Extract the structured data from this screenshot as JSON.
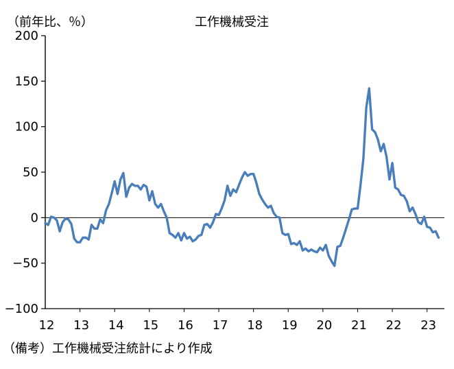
{
  "chart_data": {
    "type": "line",
    "title": "工作機械受注",
    "ylabel": "（前年比、％）",
    "ylim": [
      -100,
      200
    ],
    "yticks": [
      200,
      150,
      100,
      50,
      0,
      -50,
      -100
    ],
    "ytick_labels": [
      "200",
      "150",
      "100",
      "50",
      "0",
      "−50",
      "−100"
    ],
    "xlim": [
      2012.0,
      2023.5
    ],
    "xticks": [
      2012,
      2013,
      2014,
      2015,
      2016,
      2017,
      2018,
      2019,
      2020,
      2021,
      2022,
      2023
    ],
    "xtick_labels": [
      "12",
      "13",
      "14",
      "15",
      "16",
      "17",
      "18",
      "19",
      "20",
      "21",
      "22",
      "23"
    ],
    "grid": false,
    "series": [
      {
        "color": "#4a7ebb",
        "x": [
          2012.0,
          2012.083,
          2012.167,
          2012.25,
          2012.333,
          2012.417,
          2012.5,
          2012.583,
          2012.667,
          2012.75,
          2012.833,
          2012.917,
          2013.0,
          2013.083,
          2013.167,
          2013.25,
          2013.333,
          2013.417,
          2013.5,
          2013.583,
          2013.667,
          2013.75,
          2013.833,
          2013.917,
          2014.0,
          2014.083,
          2014.167,
          2014.25,
          2014.333,
          2014.417,
          2014.5,
          2014.583,
          2014.667,
          2014.75,
          2014.833,
          2014.917,
          2015.0,
          2015.083,
          2015.167,
          2015.25,
          2015.333,
          2015.417,
          2015.5,
          2015.583,
          2015.667,
          2015.75,
          2015.833,
          2015.917,
          2016.0,
          2016.083,
          2016.167,
          2016.25,
          2016.333,
          2016.417,
          2016.5,
          2016.583,
          2016.667,
          2016.75,
          2016.833,
          2016.917,
          2017.0,
          2017.083,
          2017.167,
          2017.25,
          2017.333,
          2017.417,
          2017.5,
          2017.583,
          2017.667,
          2017.75,
          2017.833,
          2017.917,
          2018.0,
          2018.083,
          2018.167,
          2018.25,
          2018.333,
          2018.417,
          2018.5,
          2018.583,
          2018.667,
          2018.75,
          2018.833,
          2018.917,
          2019.0,
          2019.083,
          2019.167,
          2019.25,
          2019.333,
          2019.417,
          2019.5,
          2019.583,
          2019.667,
          2019.75,
          2019.833,
          2019.917,
          2020.0,
          2020.083,
          2020.167,
          2020.25,
          2020.333,
          2020.417,
          2020.5,
          2020.583,
          2020.667,
          2020.75,
          2020.833,
          2020.917,
          2021.0,
          2021.083,
          2021.167,
          2021.25,
          2021.333,
          2021.417,
          2021.5,
          2021.583,
          2021.667,
          2021.75,
          2021.833,
          2021.917,
          2022.0,
          2022.083,
          2022.167,
          2022.25,
          2022.333,
          2022.417,
          2022.5,
          2022.583,
          2022.667,
          2022.75,
          2022.833,
          2022.917,
          2023.0,
          2023.083,
          2023.167,
          2023.25,
          2023.333
        ],
        "y": [
          -6,
          -8,
          1,
          0,
          -3,
          -15,
          -5,
          -1,
          -2,
          -7,
          -23,
          -27,
          -27,
          -22,
          -22,
          -24,
          -8,
          -12,
          -12,
          -2,
          -6,
          8,
          15,
          27,
          40,
          26,
          42,
          49,
          23,
          33,
          37,
          35,
          35,
          31,
          36,
          34,
          19,
          29,
          15,
          11,
          15,
          7,
          0,
          -17,
          -19,
          -22,
          -17,
          -25,
          -17,
          -23,
          -21,
          -26,
          -24,
          -20,
          -19,
          -8,
          -7,
          -11,
          -5,
          4,
          3,
          10,
          19,
          35,
          24,
          31,
          28,
          36,
          44,
          50,
          46,
          48,
          48,
          38,
          26,
          20,
          15,
          11,
          13,
          5,
          1,
          0,
          -17,
          -19,
          -18,
          -29,
          -28,
          -30,
          -26,
          -36,
          -34,
          -37,
          -35,
          -37,
          -38,
          -33,
          -36,
          -30,
          -42,
          -48,
          -53,
          -32,
          -31,
          -22,
          -12,
          -2,
          9,
          10,
          10,
          36,
          65,
          121,
          142,
          97,
          94,
          86,
          73,
          81,
          67,
          42,
          60,
          33,
          31,
          25,
          24,
          18,
          7,
          11,
          4,
          -5,
          -7,
          1,
          -10,
          -11,
          -16,
          -15,
          -22
        ]
      }
    ]
  },
  "footnote": "（備考）工作機械受注統計により作成"
}
